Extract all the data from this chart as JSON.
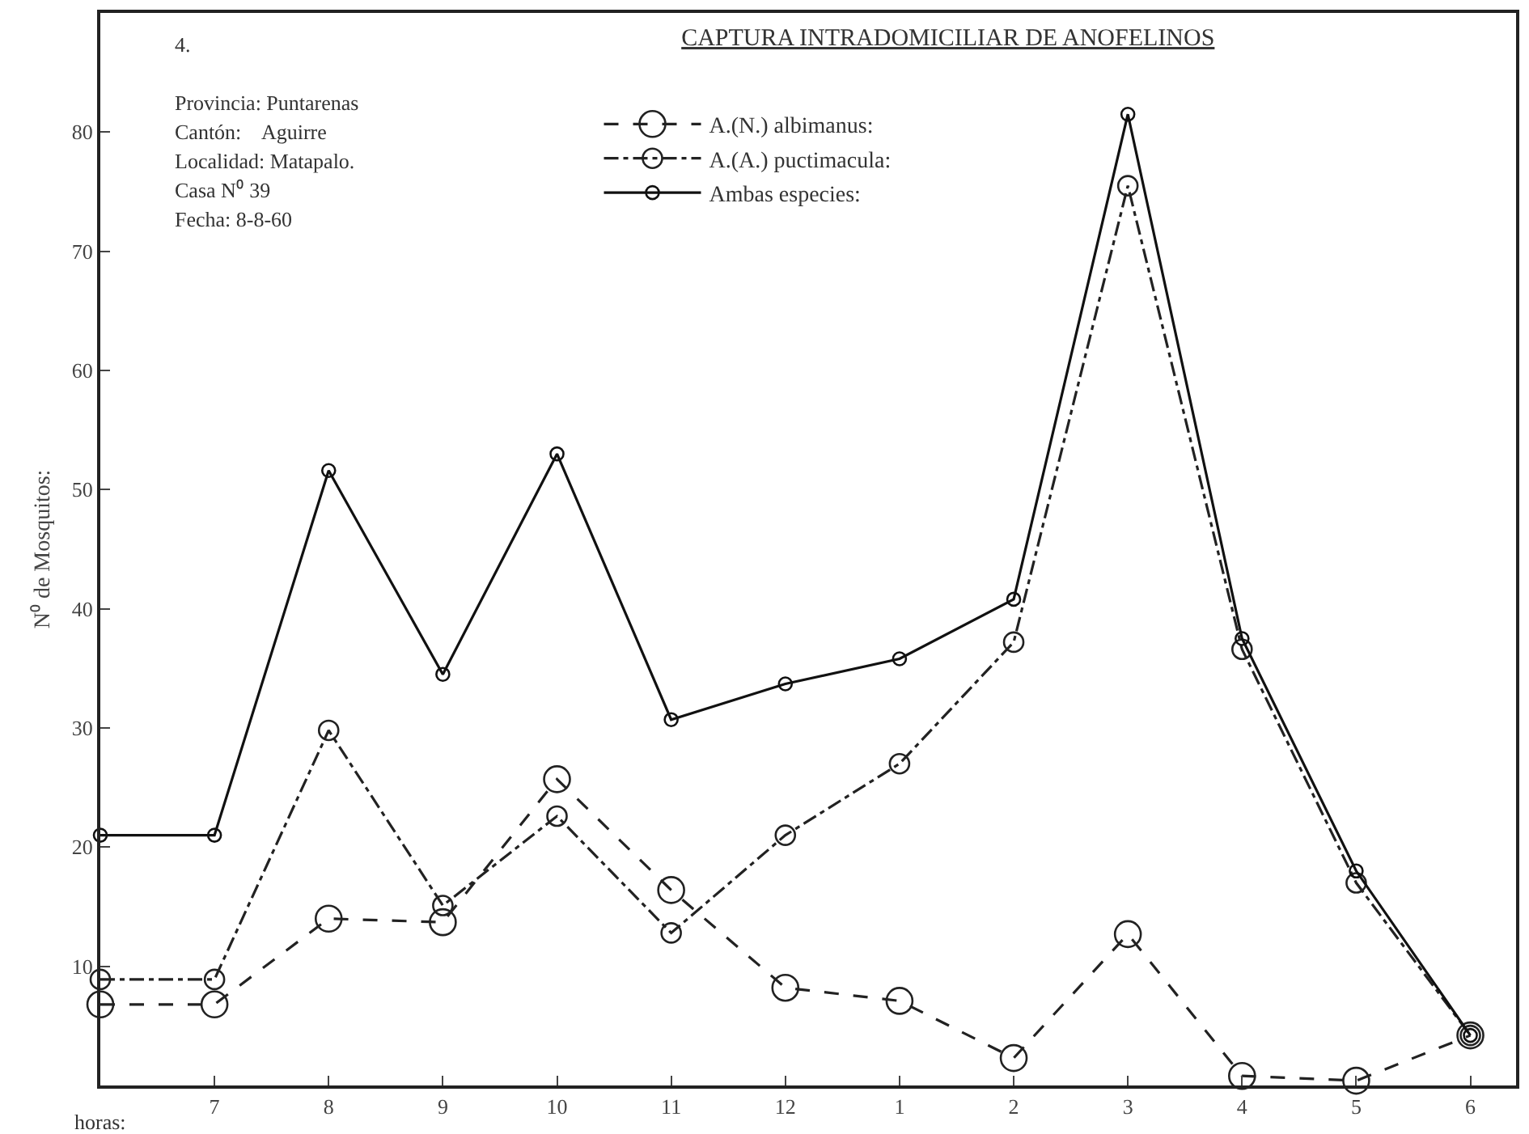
{
  "chart_data": {
    "type": "line",
    "title": "CAPTURA INTRADOMICILIAR DE ANOFELINOS",
    "xlabel": "horas:",
    "ylabel": "N⁰ de Mosquitos:",
    "categories": [
      null,
      "7",
      "8",
      "9",
      "10",
      "11",
      "12",
      "1",
      "2",
      "3",
      "4",
      "5",
      "6"
    ],
    "series": [
      {
        "name": "A.(N.) albimanus:",
        "color": "#222222",
        "line_style": "dashed",
        "values": [
          6.8,
          6.8,
          14,
          13.7,
          25.7,
          16.4,
          8.2,
          7.1,
          2.3,
          12.7,
          0.8,
          0.4,
          4.2
        ]
      },
      {
        "name": "A.(A.) puctimacula:",
        "color": "#222222",
        "line_style": "dashdot",
        "values": [
          8.9,
          8.9,
          29.8,
          15.1,
          22.6,
          12.8,
          21,
          27,
          37.2,
          75.5,
          36.6,
          17,
          4.2
        ]
      },
      {
        "name": "Ambas especies:",
        "color": "#111111",
        "line_style": "solid",
        "values": [
          21,
          21,
          51.6,
          34.5,
          53,
          30.7,
          33.7,
          35.8,
          40.8,
          81.5,
          37.5,
          18,
          4.2
        ]
      }
    ],
    "ylim": [
      0,
      90
    ],
    "yticks": [
      10,
      20,
      30,
      40,
      50,
      60,
      70,
      80
    ],
    "marker": "circle",
    "legend": "top",
    "annotations": [
      "4.",
      "Provincia: Puntarenas",
      "Cantón:    Aguirre",
      "Localidad: Matapalo.",
      "Casa N⁰ 39",
      "Fecha: 8-8-60"
    ]
  }
}
